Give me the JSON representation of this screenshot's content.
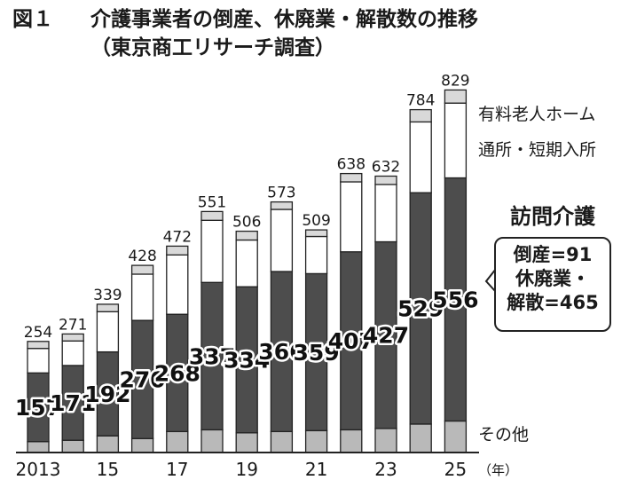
{
  "header": {
    "figure_label": "図１",
    "title": "介護事業者の倒産、休廃業・解散数の推移",
    "subtitle": "（東京商工リサーチ調査）"
  },
  "callout": {
    "title": "訪問介護",
    "bankruptcy": "倒産=91",
    "closure_line1": "休廃業・",
    "closure_line2": "解散=465"
  },
  "legend_labels": {
    "nursing_home": "有料老人ホーム",
    "day_short_stay": "通所・短期入所",
    "other": "その他"
  },
  "unit_label": "（年）",
  "colors": {
    "other": "#b9b9b9",
    "home_care": "#4d4d4d",
    "day_short_stay": "#ffffff",
    "nursing_home": "#d9d9d9",
    "outline": "#222222"
  },
  "chart_data": {
    "type": "bar",
    "stacked": true,
    "categories": [
      "2013",
      "2014",
      "2015",
      "2016",
      "2017",
      "2018",
      "2019",
      "2020",
      "2021",
      "2022",
      "2023",
      "2024",
      "2025"
    ],
    "tick_labels": [
      "2013",
      "",
      "15",
      "",
      "17",
      "",
      "19",
      "",
      "21",
      "",
      "23",
      "",
      "25"
    ],
    "totals": [
      254,
      271,
      339,
      428,
      472,
      551,
      506,
      573,
      509,
      638,
      632,
      784,
      829
    ],
    "series": [
      {
        "name": "その他",
        "key": "other",
        "values": [
          25,
          28,
          38,
          32,
          48,
          52,
          45,
          48,
          50,
          52,
          55,
          65,
          72
        ]
      },
      {
        "name": "訪問介護",
        "key": "home_care",
        "values": [
          157,
          171,
          192,
          270,
          268,
          337,
          334,
          366,
          359,
          407,
          427,
          529,
          556
        ]
      },
      {
        "name": "通所・短期入所",
        "key": "day_short_stay",
        "values": [
          56,
          56,
          92,
          106,
          136,
          142,
          107,
          142,
          85,
          160,
          131,
          162,
          171
        ]
      },
      {
        "name": "有料老人ホーム",
        "key": "nursing_home",
        "values": [
          16,
          16,
          17,
          20,
          20,
          20,
          20,
          17,
          15,
          19,
          19,
          28,
          30
        ]
      }
    ],
    "ylim": [
      0,
      840
    ],
    "grid": false,
    "xlabel": "",
    "ylabel": ""
  }
}
